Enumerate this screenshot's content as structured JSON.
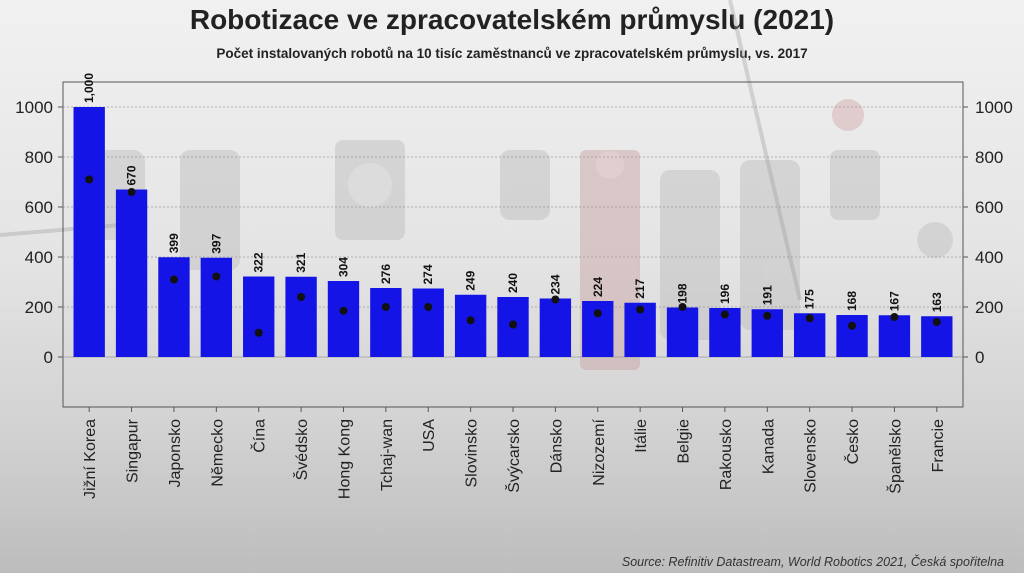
{
  "title": "Robotizace ve zpracovatelském průmyslu (2021)",
  "subtitle": "Počet instalovaných robotů na 10 tisíc zaměstnanců ve zpracovatelském průmyslu, vs. 2017",
  "source": "Source: Refinitiv Datastream, World Robotics 2021, Česká spořitelna",
  "chart_data": {
    "type": "bar",
    "categories": [
      "Jižní Korea",
      "Singapur",
      "Japonsko",
      "Německo",
      "Čína",
      "Švédsko",
      "Hong Kong",
      "Tchaj-wan",
      "USA",
      "Slovinsko",
      "Švýcarsko",
      "Dánsko",
      "Nizozemí",
      "Itálie",
      "Belgie",
      "Rakousko",
      "Kanada",
      "Slovensko",
      "Česko",
      "Španělsko",
      "Francie"
    ],
    "series": [
      {
        "type": "bar",
        "values": [
          1000,
          670,
          399,
          397,
          322,
          321,
          304,
          276,
          274,
          249,
          240,
          234,
          224,
          217,
          198,
          196,
          191,
          175,
          168,
          167,
          163
        ],
        "data_labels": [
          "1,000",
          "670",
          "399",
          "397",
          "322",
          "321",
          "304",
          "276",
          "274",
          "249",
          "240",
          "234",
          "224",
          "217",
          "198",
          "196",
          "191",
          "175",
          "168",
          "167",
          "163"
        ],
        "color": "#1414e6"
      },
      {
        "type": "scatter",
        "values": [
          710,
          660,
          310,
          322,
          97,
          240,
          185,
          200,
          200,
          147,
          130,
          230,
          175,
          190,
          200,
          170,
          165,
          155,
          125,
          160,
          140
        ],
        "color": "#111111"
      }
    ],
    "ylim": [
      -200,
      1100
    ],
    "yticks": [
      0,
      200,
      400,
      600,
      800,
      1000
    ],
    "grid": true,
    "secondary_axis": "right"
  }
}
